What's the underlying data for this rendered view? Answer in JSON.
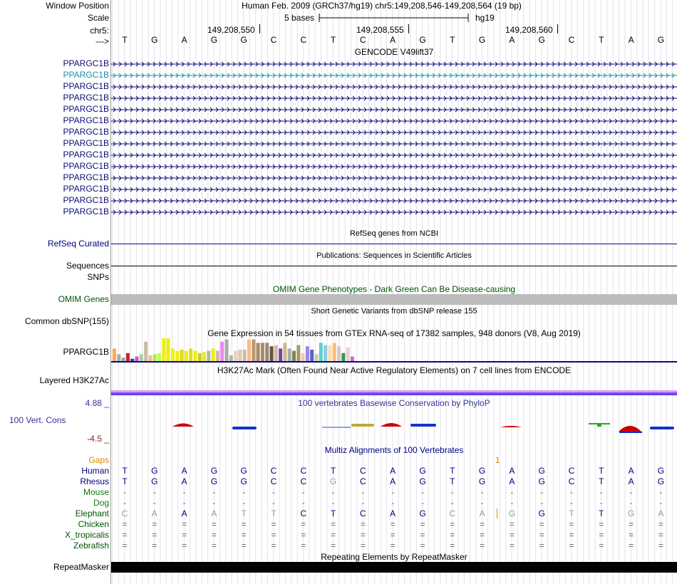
{
  "header": {
    "window_position_label": "Window Position",
    "assembly_text": "Human Feb. 2009 (GRCh37/hg19)   chr5:149,208,546-149,208,564 (19 bp)",
    "scale_label": "Scale",
    "scale_bases": "5 bases",
    "scale_db": "hg19",
    "chrom_label": "chr5:",
    "strand_label": "--->",
    "positions": [
      "149,208,550",
      "149,208,555",
      "149,208,560"
    ]
  },
  "sequence": [
    "T",
    "G",
    "A",
    "G",
    "G",
    "C",
    "C",
    "T",
    "C",
    "A",
    "G",
    "T",
    "G",
    "A",
    "G",
    "C",
    "T",
    "A",
    "G"
  ],
  "tracks": {
    "gencode": {
      "title": "GENCODE V49lift37",
      "genes": [
        "PPARGC1B",
        "PPARGC1B",
        "PPARGC1B",
        "PPARGC1B",
        "PPARGC1B",
        "PPARGC1B",
        "PPARGC1B",
        "PPARGC1B",
        "PPARGC1B",
        "PPARGC1B",
        "PPARGC1B",
        "PPARGC1B",
        "PPARGC1B",
        "PPARGC1B"
      ],
      "colors": {
        "primary": "#0c0c78",
        "alt": "#1790a8"
      }
    },
    "refseq": {
      "title": "RefSeq genes from NCBI",
      "label": "RefSeq Curated"
    },
    "publications": {
      "title": "Publications: Sequences in Scientific Articles",
      "label1": "Sequences",
      "label2": "SNPs"
    },
    "omim": {
      "title": "OMIM Gene Phenotypes - Dark Green Can Be Disease-causing",
      "label": "OMIM Genes"
    },
    "dbsnp": {
      "title": "Short Genetic Variants from dbSNP release 155",
      "label": "Common dbSNP(155)"
    },
    "gtex": {
      "title": "Gene Expression in 54 tissues from GTEx RNA-seq of 17382 samples, 948 donors (V8, Aug 2019)",
      "label": "PPARGC1B",
      "levels": [
        0.55,
        0.3,
        0.15,
        0.35,
        0.1,
        0.2,
        0.3,
        0.85,
        0.25,
        0.3,
        0.35,
        1.0,
        1.0,
        0.55,
        0.45,
        0.5,
        0.45,
        0.55,
        0.45,
        0.35,
        0.4,
        0.45,
        0.55,
        0.45,
        0.85,
        0.95,
        0.25,
        0.45,
        0.5,
        0.5,
        0.95,
        0.95,
        0.8,
        0.8,
        0.8,
        0.65,
        0.7,
        0.55,
        0.8,
        0.55,
        0.45,
        0.7,
        0.35,
        0.65,
        0.5,
        0.3,
        0.8,
        0.7,
        0.7,
        0.8,
        0.65,
        0.35,
        0.6,
        0.2
      ],
      "bar_colors": [
        "#ffaa55",
        "#aaaaaa",
        "#88aaaa",
        "#cc2222",
        "#333399",
        "#cc55cc",
        "#aaccaa",
        "#ccbbaa",
        "#ffbb88",
        "#aaee44",
        "#bbff55",
        "#eeee11",
        "#eeee11",
        "#eeee11",
        "#eeee11",
        "#dddd22",
        "#eeee11",
        "#dddd22",
        "#eeee11",
        "#cccc33",
        "#eeee11",
        "#aabbaa",
        "#eeee11",
        "#ccbbaa",
        "#ee88ee",
        "#aaaaaa",
        "#aabb99",
        "#eecccc",
        "#ddccaa",
        "#ccbbaa",
        "#ffbb88",
        "#bb9977",
        "#aa8866",
        "#aa8866",
        "#998877",
        "#665544",
        "#ccbbaa",
        "#7744aa",
        "#ccbb88",
        "#aaaaaa",
        "#778855",
        "#aa9966",
        "#eeccaa",
        "#9988ee",
        "#5566cc",
        "#ccccaa",
        "#66cccc",
        "#88ccee",
        "#ffddaa",
        "#ffbb77",
        "#cccccc",
        "#339955",
        "#eecccc",
        "#cc66ee"
      ]
    },
    "h3k27ac": {
      "title": "H3K27Ac Mark (Often Found Near Active Regulatory Elements) on 7 cell lines from ENCODE",
      "label": "Layered H3K27Ac"
    },
    "phylop": {
      "title": "100 vertebrates Basewise Conservation by PhyloP",
      "label": "100 Vert. Cons",
      "max": "4.88 _",
      "min": "-4.5 _"
    },
    "multiz": {
      "title": "Multiz Alignments of 100 Vertebrates",
      "gaps_label": "Gaps",
      "gap_mark": "1",
      "species": [
        {
          "name": "Human",
          "bases": [
            "T",
            "G",
            "A",
            "G",
            "G",
            "C",
            "C",
            "T",
            "C",
            "A",
            "G",
            "T",
            "G",
            "A",
            "G",
            "C",
            "T",
            "A",
            "G"
          ]
        },
        {
          "name": "Rhesus",
          "bases": [
            "T",
            "G",
            "A",
            "G",
            "G",
            "C",
            "C",
            "G",
            "C",
            "A",
            "G",
            "T",
            "G",
            "A",
            "G",
            "C",
            "T",
            "A",
            "G"
          ]
        },
        {
          "name": "Mouse",
          "bases": [
            "-",
            "-",
            "-",
            "-",
            "-",
            "-",
            "-",
            "-",
            "-",
            "-",
            "-",
            "-",
            "-",
            "-",
            "-",
            "-",
            "-",
            "-",
            "-"
          ]
        },
        {
          "name": "Dog",
          "bases": [
            "-",
            "-",
            "-",
            "-",
            "-",
            "-",
            "-",
            "-",
            "-",
            "-",
            "-",
            "-",
            "-",
            "-",
            "-",
            "-",
            "-",
            "-",
            "-"
          ]
        },
        {
          "name": "Elephant",
          "bases": [
            "C",
            "A",
            "A",
            "A",
            "T",
            "T",
            "C",
            "T",
            "C",
            "A",
            "G",
            "C",
            "A",
            "G",
            "G",
            "T",
            "T",
            "G",
            "A"
          ]
        },
        {
          "name": "Chicken",
          "bases": [
            "=",
            "=",
            "=",
            "=",
            "=",
            "=",
            "=",
            "=",
            "=",
            "=",
            "=",
            "=",
            "=",
            "=",
            "=",
            "=",
            "=",
            "=",
            "="
          ]
        },
        {
          "name": "X_tropicalis",
          "bases": [
            "=",
            "=",
            "=",
            "=",
            "=",
            "=",
            "=",
            "=",
            "=",
            "=",
            "=",
            "=",
            "=",
            "=",
            "=",
            "=",
            "=",
            "=",
            "="
          ]
        },
        {
          "name": "Zebrafish",
          "bases": [
            "=",
            "=",
            "=",
            "=",
            "=",
            "=",
            "=",
            "=",
            "=",
            "=",
            "=",
            "=",
            "=",
            "=",
            "=",
            "=",
            "=",
            "=",
            "="
          ]
        }
      ]
    },
    "repeatmasker": {
      "title": "Repeating Elements by RepeatMasker",
      "label": "RepeatMasker"
    }
  }
}
